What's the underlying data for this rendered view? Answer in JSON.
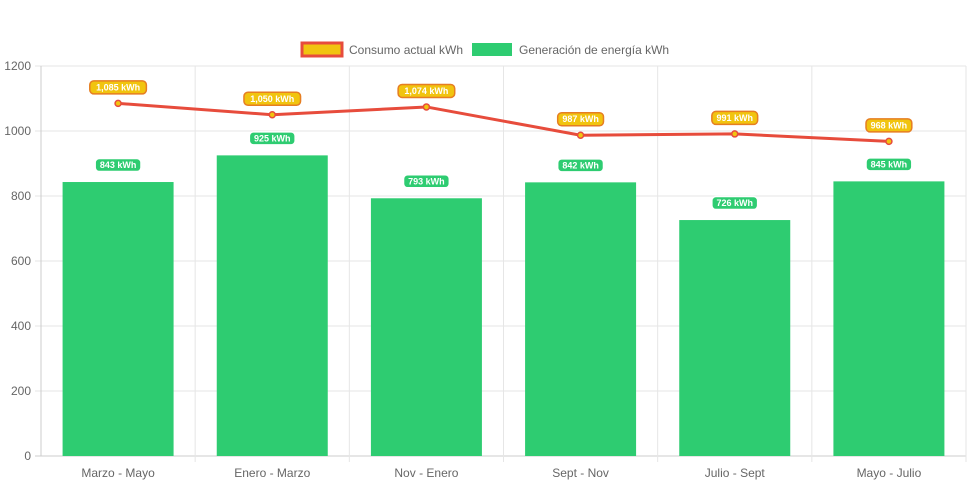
{
  "chart_data": {
    "type": "bar",
    "categories": [
      "Marzo - Mayo",
      "Enero - Marzo",
      "Nov - Enero",
      "Sept - Nov",
      "Julio - Sept",
      "Mayo - Julio"
    ],
    "series": [
      {
        "name": "Consumo actual kWh",
        "type": "line",
        "values": [
          1085,
          1050,
          1074,
          987,
          991,
          968
        ],
        "labels": [
          "1,085 kWh",
          "1,050 kWh",
          "1,074 kWh",
          "987 kWh",
          "991 kWh",
          "968 kWh"
        ],
        "color": "#e74c3c",
        "label_color": "#f1c40f"
      },
      {
        "name": "Generación de energía kWh",
        "type": "bar",
        "values": [
          843,
          925,
          793,
          842,
          726,
          845
        ],
        "labels": [
          "843 kWh",
          "925 kWh",
          "793 kWh",
          "842 kWh",
          "726 kWh",
          "845 kWh"
        ],
        "color": "#2ecc71"
      }
    ],
    "y_ticks": [
      "0",
      "200",
      "400",
      "600",
      "800",
      "1000",
      "1200"
    ],
    "ylim": [
      0,
      1200
    ],
    "grid": true,
    "legend_position": "top"
  }
}
